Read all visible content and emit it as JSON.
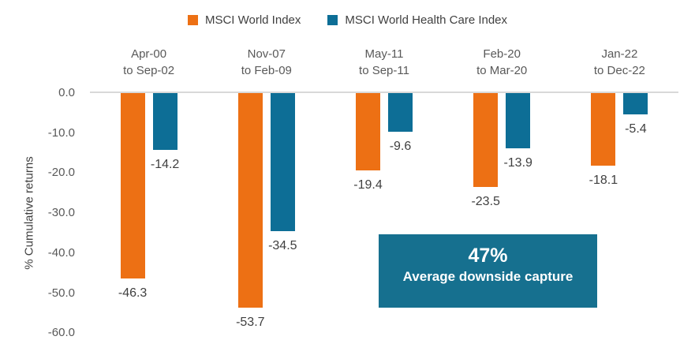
{
  "chart_data": {
    "type": "bar",
    "title": "",
    "xlabel": "",
    "ylabel": "% Cumulative returns",
    "ylim": [
      -60,
      0
    ],
    "yticks": [
      "0.0",
      "-10.0",
      "-20.0",
      "-30.0",
      "-40.0",
      "-50.0",
      "-60.0"
    ],
    "grid": false,
    "legend_position": "top-center",
    "categories": [
      {
        "line1": "Apr-00",
        "line2": "to Sep-02"
      },
      {
        "line1": "Nov-07",
        "line2": "to Feb-09"
      },
      {
        "line1": "May-11",
        "line2": "to Sep-11"
      },
      {
        "line1": "Feb-20",
        "line2": "to Mar-20"
      },
      {
        "line1": "Jan-22",
        "line2": "to Dec-22"
      }
    ],
    "series": [
      {
        "name": "MSCI World Index",
        "color": "#ED7014",
        "values": [
          -46.3,
          -53.7,
          -19.4,
          -23.5,
          -18.1
        ]
      },
      {
        "name": "MSCI World Health Care Index",
        "color": "#0D6E96",
        "values": [
          -14.2,
          -34.5,
          -9.6,
          -13.9,
          -5.4
        ]
      }
    ]
  },
  "annotation": {
    "headline": "47%",
    "subtext": "Average downside capture",
    "background": "#16708F"
  },
  "colors": {
    "axis_line": "#D9D9D9",
    "tick_text": "#595959",
    "label_text": "#404040"
  }
}
